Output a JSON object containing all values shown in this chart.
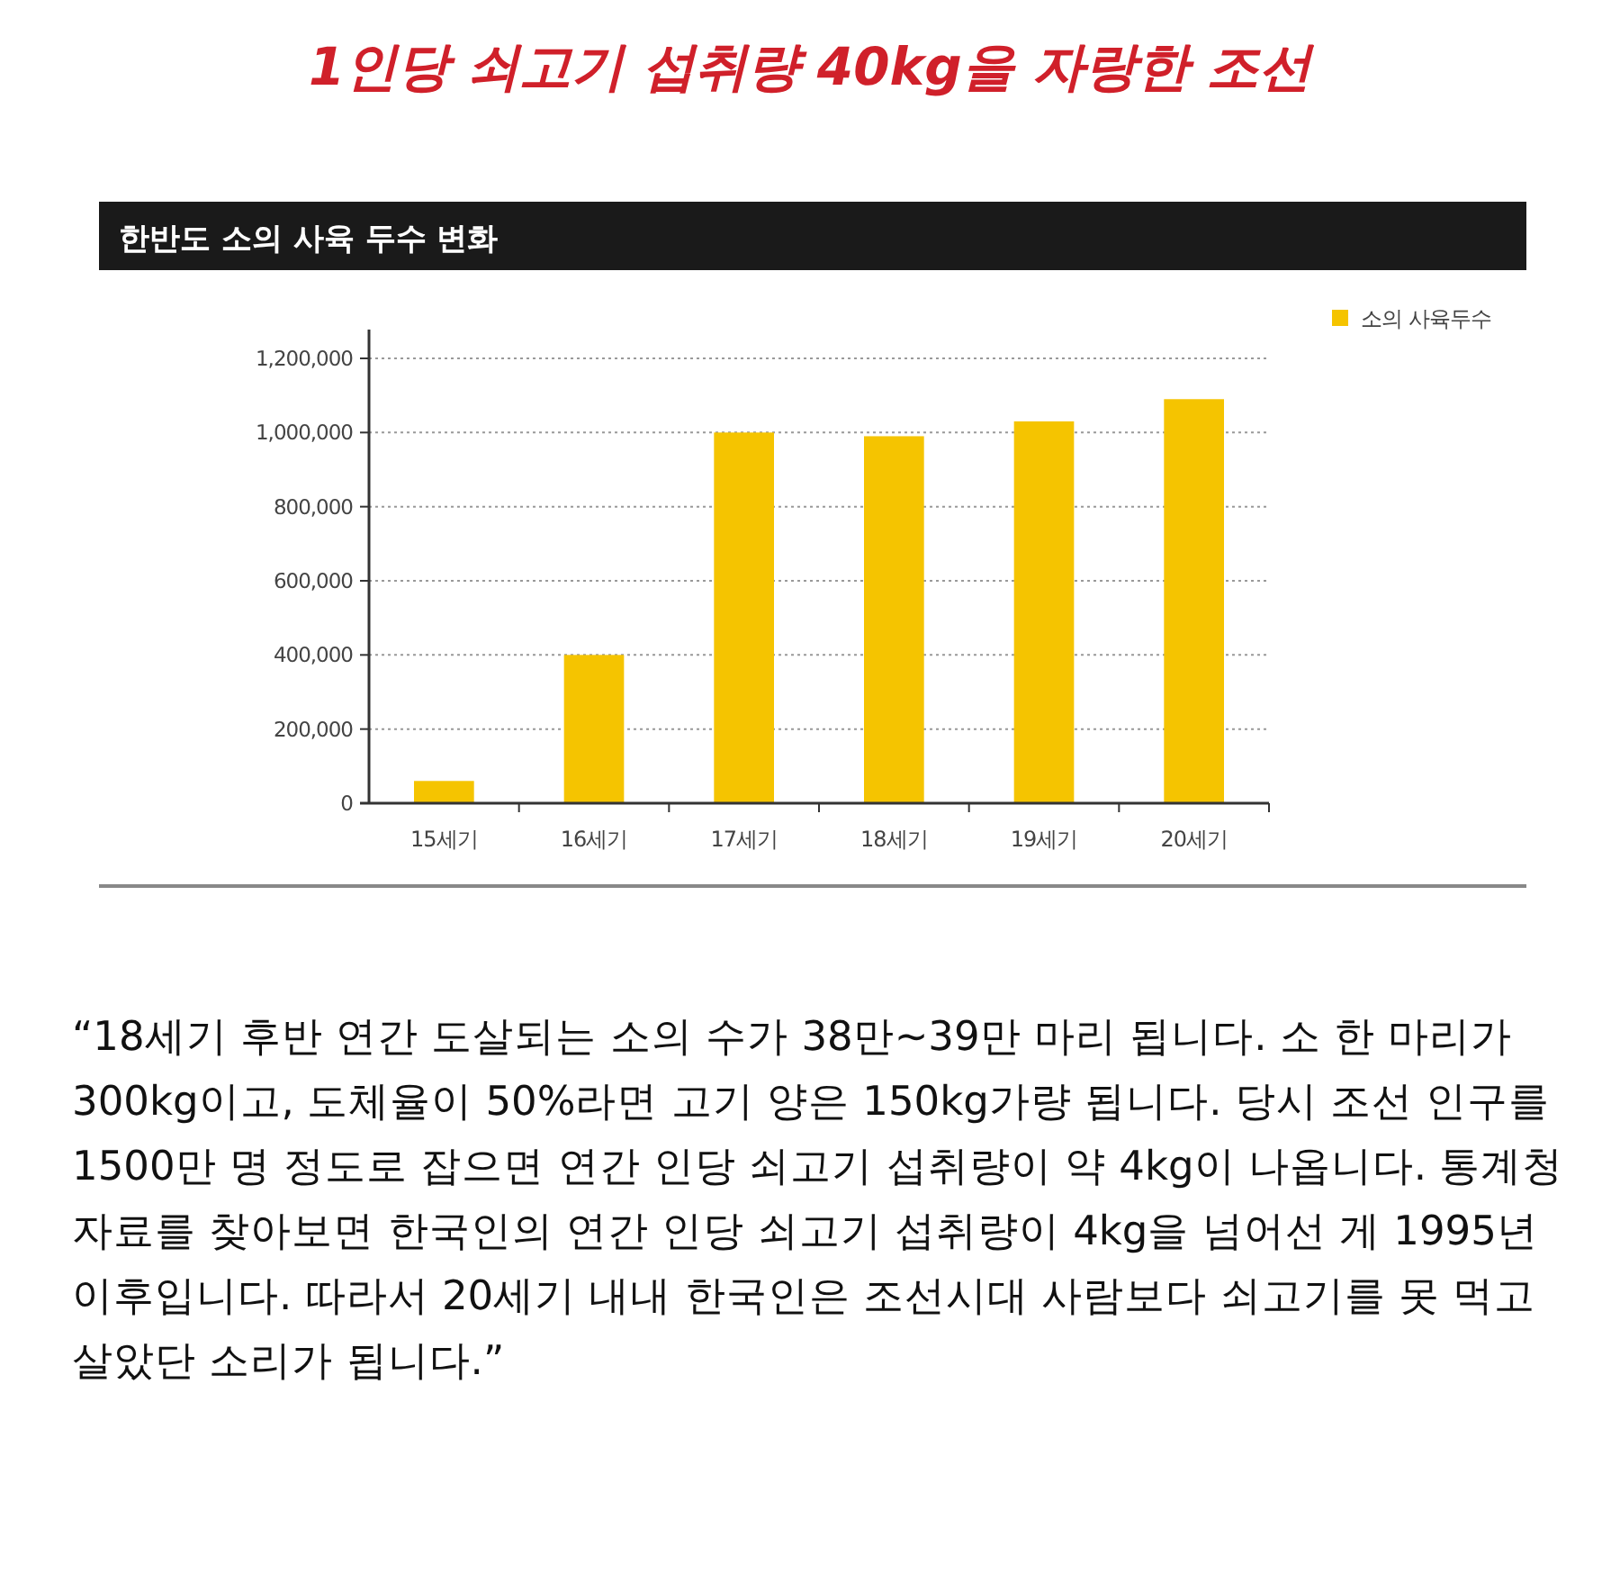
{
  "chart_data": {
    "type": "bar",
    "title": "1인당 쇠고기 섭취량 40kg을 자랑한 조선",
    "subtitle": "한반도 소의 사육 두수 변화",
    "categories": [
      "15세기",
      "16세기",
      "17세기",
      "18세기",
      "19세기",
      "20세기"
    ],
    "series": [
      {
        "name": "소의 사육두수",
        "color": "#f5c400",
        "values": [
          60000,
          400000,
          1000000,
          990000,
          1030000,
          1090000
        ]
      }
    ],
    "ylim": [
      0,
      1200000
    ],
    "yticks": [
      {
        "value": 0,
        "label": "0"
      },
      {
        "value": 200000,
        "label": "200,000"
      },
      {
        "value": 400000,
        "label": "400,000"
      },
      {
        "value": 600000,
        "label": "600,000"
      },
      {
        "value": 800000,
        "label": "800,000"
      },
      {
        "value": 1000000,
        "label": "1,000,000"
      },
      {
        "value": 1200000,
        "label": "1,200,000"
      }
    ],
    "grid": "y",
    "legend": "top right",
    "annotations": [
      "“18세기 후반 연간 도살되는 소의 수가 38만~39만 마리 됩니다. 소 한 마리가 300kg이고, 도체율이 50%라면 고기 양은 150kg가량 됩니다. 당시 조선 인구를 1500만 명 정도로 잡으면 연간 인당 쇠고기 섭취량이 약 4kg이 나옵니다. 통계청 자료를 찾아보면 한국인의 연간 인당 쇠고기 섭취량이 4kg을 넘어선 게 1995년 이후입니다. 따라서 20세기 내내 한국인은 조선시대 사람보다 쇠고기를 못 먹고 살았단 소리가 됩니다.”"
    ]
  }
}
